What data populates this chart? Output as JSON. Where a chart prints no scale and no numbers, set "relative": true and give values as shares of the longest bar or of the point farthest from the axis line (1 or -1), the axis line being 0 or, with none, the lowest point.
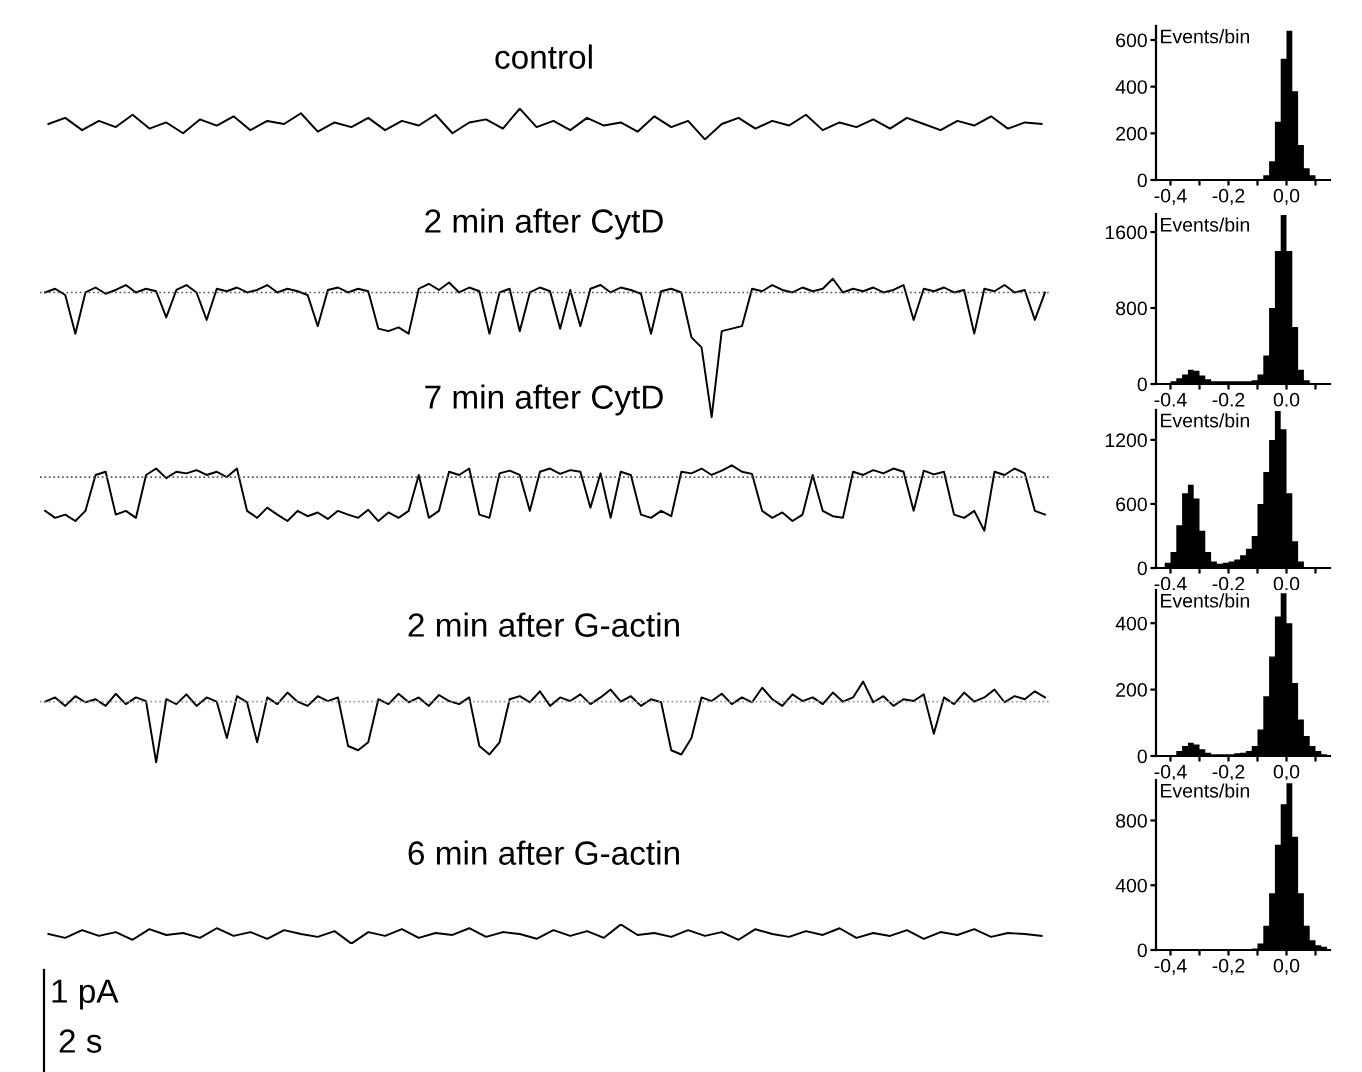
{
  "chart_data": [
    {
      "type": "line",
      "title": "control",
      "relative": true,
      "color": "#000000",
      "categories": [
        null,
        null,
        null,
        null,
        null,
        null,
        null,
        null,
        null,
        null,
        null,
        null,
        null,
        null,
        null,
        null,
        null,
        null,
        null,
        null,
        null,
        null,
        null,
        null,
        null,
        null,
        null,
        null,
        null,
        null,
        null,
        null,
        null,
        null,
        null,
        null,
        null,
        null,
        null,
        null,
        null,
        null,
        null,
        null,
        null,
        null,
        null,
        null,
        null,
        null,
        null,
        null,
        null,
        null,
        null,
        null,
        null,
        null,
        null,
        null
      ],
      "values": [
        0.5,
        0.7,
        0.3,
        0.6,
        0.4,
        0.8,
        0.35,
        0.55,
        0.2,
        0.65,
        0.45,
        0.75,
        0.3,
        0.6,
        0.5,
        0.85,
        0.25,
        0.55,
        0.4,
        0.7,
        0.3,
        0.6,
        0.45,
        0.8,
        0.2,
        0.55,
        0.65,
        0.35,
        1,
        0.4,
        0.6,
        0.3,
        0.7,
        0.45,
        0.55,
        0.25,
        0.75,
        0.4,
        0.6,
        0.0,
        0.5,
        0.7,
        0.35,
        0.6,
        0.45,
        0.8,
        0.3,
        0.55,
        0.4,
        0.65,
        0.35,
        0.7,
        0.5,
        0.3,
        0.6,
        0.45,
        0.75,
        0.35,
        0.55,
        0.5
      ]
    },
    {
      "type": "histogram",
      "annotations": [
        "Events/bin"
      ],
      "bins": [
        -0.44,
        -0.42,
        -0.4,
        -0.38,
        -0.36,
        -0.34,
        -0.32,
        -0.3,
        -0.28,
        -0.26,
        -0.24,
        -0.22,
        -0.2,
        -0.18,
        -0.16,
        -0.14,
        -0.12,
        -0.1,
        -0.08,
        -0.06,
        -0.04,
        -0.02,
        0.0,
        0.02,
        0.04,
        0.06,
        0.08,
        0.1,
        0.12,
        0.14
      ],
      "values": [
        0,
        0,
        0,
        0,
        0,
        0,
        0,
        0,
        0,
        0,
        0,
        0,
        0,
        0,
        0,
        0,
        0,
        0,
        20,
        80,
        250,
        520,
        640,
        380,
        150,
        50,
        20,
        0,
        0
      ],
      "color": "#000000",
      "xlim": [
        -0.45,
        0.15
      ],
      "ylim": [
        0,
        660
      ],
      "yticks": [
        0,
        200,
        400,
        600
      ],
      "xticks": [
        {
          "value": -0.4,
          "label": "-0,4"
        },
        {
          "value": -0.3,
          "label": null
        },
        {
          "value": -0.2,
          "label": "-0,2"
        },
        {
          "value": -0.1,
          "label": null
        },
        {
          "value": 0.0,
          "label": "0,0"
        },
        {
          "value": 0.1,
          "label": null
        }
      ]
    },
    {
      "type": "line",
      "title": "2 min after CytD",
      "relative": true,
      "color": "#000000",
      "categories": [
        null,
        null,
        null,
        null,
        null,
        null,
        null,
        null,
        null,
        null,
        null,
        null,
        null,
        null,
        null,
        null,
        null,
        null,
        null,
        null,
        null,
        null,
        null,
        null,
        null,
        null,
        null,
        null,
        null,
        null,
        null,
        null,
        null,
        null,
        null,
        null,
        null,
        null,
        null,
        null,
        null,
        null,
        null,
        null,
        null,
        null,
        null,
        null,
        null,
        null,
        null,
        null,
        null,
        null,
        null,
        null,
        null,
        null,
        null,
        null,
        null,
        null,
        null,
        null,
        null,
        null,
        null,
        null,
        null,
        null,
        null,
        null,
        null,
        null,
        null,
        null,
        null,
        null,
        null,
        null,
        null,
        null,
        null,
        null,
        null,
        null,
        null,
        null,
        null,
        null,
        null,
        null,
        null,
        null,
        null,
        null,
        null,
        null,
        null,
        null
      ],
      "values": [
        0,
        0.03,
        -0.02,
        -0.33,
        0,
        0.04,
        -0.01,
        0.02,
        0.06,
        0,
        0.03,
        0.01,
        -0.2,
        0.02,
        0.06,
        0,
        -0.22,
        0.03,
        0.01,
        0.04,
        0,
        0.02,
        0.06,
        0,
        0.03,
        0.01,
        -0.02,
        -0.27,
        0.02,
        0.04,
        0,
        0.03,
        0.01,
        -0.29,
        -0.31,
        -0.28,
        -0.33,
        0.03,
        0.07,
        0.02,
        0.08,
        0,
        0.04,
        0.01,
        -0.33,
        0,
        0.03,
        -0.31,
        0,
        0.04,
        0.01,
        -0.29,
        0.02,
        -0.27,
        0.03,
        0.06,
        0,
        0.04,
        0.02,
        -0.01,
        -0.33,
        0.01,
        0.03,
        0,
        -0.36,
        -0.44,
        -1,
        -0.31,
        -0.29,
        -0.27,
        0.03,
        0.01,
        0.06,
        0.02,
        0,
        0.04,
        0.01,
        0.03,
        0.11,
        0,
        0.03,
        0.01,
        0.04,
        0,
        0.02,
        0.06,
        -0.22,
        0.03,
        0.01,
        0.04,
        0,
        0.02,
        -0.33,
        0.03,
        0.01,
        0.06,
        0,
        0.02,
        -0.22,
        0
      ],
      "ref_lines": [
        {
          "axis": "y",
          "value": 0,
          "line_style": "dotted",
          "color": "#555555"
        }
      ]
    },
    {
      "type": "histogram",
      "annotations": [
        "Events/bin"
      ],
      "bins": [
        -0.44,
        -0.42,
        -0.4,
        -0.38,
        -0.36,
        -0.34,
        -0.32,
        -0.3,
        -0.28,
        -0.26,
        -0.24,
        -0.22,
        -0.2,
        -0.18,
        -0.16,
        -0.14,
        -0.12,
        -0.1,
        -0.08,
        -0.06,
        -0.04,
        -0.02,
        0.0,
        0.02,
        0.04,
        0.06,
        0.08,
        0.1,
        0.12,
        0.14
      ],
      "values": [
        0,
        10,
        30,
        60,
        100,
        150,
        140,
        90,
        50,
        30,
        30,
        30,
        30,
        30,
        30,
        30,
        40,
        100,
        300,
        800,
        1400,
        1780,
        1400,
        600,
        150,
        40,
        10,
        0,
        0
      ],
      "color": "#000000",
      "xlim": [
        -0.45,
        0.15
      ],
      "ylim": [
        0,
        1790
      ],
      "yticks": [
        0,
        800,
        1600
      ],
      "xticks": [
        {
          "value": -0.4,
          "label": "-0.4"
        },
        {
          "value": -0.3,
          "label": null
        },
        {
          "value": -0.2,
          "label": "-0.2"
        },
        {
          "value": -0.1,
          "label": null
        },
        {
          "value": 0.0,
          "label": "0.0"
        },
        {
          "value": 0.1,
          "label": null
        }
      ]
    },
    {
      "type": "line",
      "title": "7 min after CytD",
      "relative": true,
      "color": "#000000",
      "categories": [
        null,
        null,
        null,
        null,
        null,
        null,
        null,
        null,
        null,
        null,
        null,
        null,
        null,
        null,
        null,
        null,
        null,
        null,
        null,
        null,
        null,
        null,
        null,
        null,
        null,
        null,
        null,
        null,
        null,
        null,
        null,
        null,
        null,
        null,
        null,
        null,
        null,
        null,
        null,
        null,
        null,
        null,
        null,
        null,
        null,
        null,
        null,
        null,
        null,
        null,
        null,
        null,
        null,
        null,
        null,
        null,
        null,
        null,
        null,
        null,
        null,
        null,
        null,
        null,
        null,
        null,
        null,
        null,
        null,
        null,
        null,
        null,
        null,
        null,
        null,
        null,
        null,
        null,
        null,
        null,
        null,
        null,
        null,
        null,
        null,
        null,
        null,
        null,
        null,
        null,
        null,
        null,
        null,
        null,
        null,
        null,
        null,
        null,
        null,
        null
      ],
      "values": [
        -0.63,
        -0.76,
        -0.7,
        -0.82,
        -0.63,
        0.04,
        0.1,
        -0.7,
        -0.63,
        -0.76,
        0.04,
        0.16,
        -0.02,
        0.1,
        0.07,
        0.13,
        0.04,
        0.1,
        0,
        0.16,
        -0.63,
        -0.76,
        -0.57,
        -0.7,
        -0.82,
        -0.63,
        -0.73,
        -0.66,
        -0.78,
        -0.63,
        -0.7,
        -0.76,
        -0.61,
        -0.82,
        -0.66,
        -0.76,
        -0.63,
        0.04,
        -0.76,
        -0.63,
        0.1,
        0.04,
        0.16,
        -0.7,
        -0.76,
        0.07,
        0.12,
        0.04,
        -0.63,
        0.1,
        0.16,
        0.06,
        0.13,
        0.1,
        -0.57,
        0.07,
        -0.76,
        0.1,
        0.04,
        -0.7,
        -0.76,
        -0.63,
        -0.73,
        0.1,
        0.07,
        0.16,
        0.04,
        0.12,
        0.22,
        0.1,
        0.06,
        -0.63,
        -0.76,
        -0.66,
        -0.82,
        -0.7,
        0.04,
        -0.63,
        -0.73,
        -0.76,
        0.1,
        0.04,
        0.13,
        0.07,
        0.16,
        0.1,
        -0.63,
        0.12,
        0.05,
        0.1,
        -0.7,
        -0.76,
        -0.63,
        -1,
        0.1,
        0.04,
        0.16,
        0.07,
        -0.63,
        -0.7
      ],
      "ref_lines": [
        {
          "axis": "y",
          "value": 0,
          "line_style": "dotted",
          "color": "#555555"
        }
      ]
    },
    {
      "type": "histogram",
      "annotations": [
        "Events/bin"
      ],
      "bins": [
        -0.44,
        -0.42,
        -0.4,
        -0.38,
        -0.36,
        -0.34,
        -0.32,
        -0.3,
        -0.28,
        -0.26,
        -0.24,
        -0.22,
        -0.2,
        -0.18,
        -0.16,
        -0.14,
        -0.12,
        -0.1,
        -0.08,
        -0.06,
        -0.04,
        -0.02,
        0.0,
        0.02,
        0.04,
        0.06,
        0.08,
        0.1,
        0.12,
        0.14
      ],
      "values": [
        10,
        50,
        150,
        400,
        700,
        780,
        650,
        350,
        150,
        60,
        40,
        50,
        60,
        80,
        120,
        180,
        300,
        600,
        900,
        1200,
        1470,
        1300,
        700,
        250,
        60,
        10,
        0,
        0,
        0
      ],
      "color": "#000000",
      "xlim": [
        -0.45,
        0.15
      ],
      "ylim": [
        0,
        1480
      ],
      "yticks": [
        0,
        600,
        1200
      ],
      "xticks": [
        {
          "value": -0.4,
          "label": "-0,4"
        },
        {
          "value": -0.3,
          "label": null
        },
        {
          "value": -0.2,
          "label": "-0,2"
        },
        {
          "value": -0.1,
          "label": null
        },
        {
          "value": 0.0,
          "label": "0,0"
        },
        {
          "value": 0.1,
          "label": null
        }
      ]
    },
    {
      "type": "line",
      "title": "2 min after G-actin",
      "relative": true,
      "color": "#000000",
      "categories": [
        null,
        null,
        null,
        null,
        null,
        null,
        null,
        null,
        null,
        null,
        null,
        null,
        null,
        null,
        null,
        null,
        null,
        null,
        null,
        null,
        null,
        null,
        null,
        null,
        null,
        null,
        null,
        null,
        null,
        null,
        null,
        null,
        null,
        null,
        null,
        null,
        null,
        null,
        null,
        null,
        null,
        null,
        null,
        null,
        null,
        null,
        null,
        null,
        null,
        null,
        null,
        null,
        null,
        null,
        null,
        null,
        null,
        null,
        null,
        null,
        null,
        null,
        null,
        null,
        null,
        null,
        null,
        null,
        null,
        null,
        null,
        null,
        null,
        null,
        null,
        null,
        null,
        null,
        null,
        null,
        null,
        null,
        null,
        null,
        null,
        null,
        null,
        null,
        null,
        null,
        null,
        null,
        null,
        null,
        null,
        null,
        null,
        null,
        null,
        null
      ],
      "values": [
        0,
        0.07,
        -0.07,
        0.09,
        -0.01,
        0.04,
        -0.07,
        0.13,
        -0.04,
        0.07,
        0.01,
        -1,
        0.04,
        -0.04,
        0.12,
        -0.07,
        0.07,
        0,
        -0.6,
        0.09,
        -0.01,
        -0.67,
        0.07,
        -0.04,
        0.15,
        0,
        -0.07,
        0.09,
        0.01,
        0.07,
        -0.73,
        -0.8,
        -0.67,
        0.04,
        -0.04,
        0.13,
        -0.01,
        0.07,
        -0.07,
        0.11,
        0.01,
        -0.04,
        0.07,
        -0.73,
        -0.87,
        -0.67,
        0.04,
        0.09,
        -0.01,
        0.17,
        -0.07,
        0.07,
        0.01,
        0.12,
        -0.04,
        0.07,
        0.2,
        0,
        0.09,
        -0.07,
        0.04,
        -0.01,
        -0.8,
        -0.87,
        -0.6,
        0.07,
        0.01,
        0.13,
        -0.04,
        0.07,
        -0.01,
        0.23,
        0.04,
        -0.07,
        0.12,
        0.01,
        0.07,
        -0.04,
        0.15,
        0,
        0.07,
        0.33,
        -0.01,
        0.09,
        -0.07,
        0.04,
        0.01,
        0.12,
        -0.53,
        0.07,
        -0.04,
        0.15,
        0,
        0.07,
        0.2,
        -0.01,
        0.09,
        0.04,
        0.17,
        0.07
      ],
      "ref_lines": [
        {
          "axis": "y",
          "value": 0,
          "line_style": "dotted",
          "color": "#999999"
        }
      ]
    },
    {
      "type": "histogram",
      "annotations": [
        "Events/bin"
      ],
      "bins": [
        -0.44,
        -0.42,
        -0.4,
        -0.38,
        -0.36,
        -0.34,
        -0.32,
        -0.3,
        -0.28,
        -0.26,
        -0.24,
        -0.22,
        -0.2,
        -0.18,
        -0.16,
        -0.14,
        -0.12,
        -0.1,
        -0.08,
        -0.06,
        -0.04,
        -0.02,
        0.0,
        0.02,
        0.04,
        0.06,
        0.08,
        0.1,
        0.12,
        0.14
      ],
      "values": [
        0,
        0,
        0,
        15,
        30,
        40,
        35,
        20,
        10,
        5,
        5,
        5,
        5,
        8,
        10,
        15,
        30,
        80,
        180,
        300,
        420,
        490,
        400,
        220,
        110,
        60,
        30,
        15,
        5
      ],
      "color": "#000000",
      "xlim": [
        -0.45,
        0.15
      ],
      "ylim": [
        0,
        500
      ],
      "yticks": [
        0,
        200,
        400
      ],
      "xticks": [
        {
          "value": -0.4,
          "label": "-0,4"
        },
        {
          "value": -0.3,
          "label": null
        },
        {
          "value": -0.2,
          "label": "-0,2"
        },
        {
          "value": -0.1,
          "label": null
        },
        {
          "value": 0.0,
          "label": "0,0"
        },
        {
          "value": 0.1,
          "label": null
        }
      ]
    },
    {
      "type": "line",
      "title": "6 min after G-actin",
      "relative": true,
      "color": "#000000",
      "categories": [
        null,
        null,
        null,
        null,
        null,
        null,
        null,
        null,
        null,
        null,
        null,
        null,
        null,
        null,
        null,
        null,
        null,
        null,
        null,
        null,
        null,
        null,
        null,
        null,
        null,
        null,
        null,
        null,
        null,
        null,
        null,
        null,
        null,
        null,
        null,
        null,
        null,
        null,
        null,
        null,
        null,
        null,
        null,
        null,
        null,
        null,
        null,
        null,
        null,
        null,
        null,
        null,
        null,
        null,
        null,
        null,
        null,
        null,
        null,
        null
      ],
      "values": [
        0.5,
        0.3,
        0.7,
        0.4,
        0.6,
        0.2,
        0.75,
        0.45,
        0.55,
        0.3,
        0.8,
        0.4,
        0.6,
        0.25,
        0.7,
        0.5,
        0.35,
        0.65,
        0.0,
        0.6,
        0.4,
        0.75,
        0.3,
        0.55,
        0.45,
        0.8,
        0.35,
        0.6,
        0.5,
        0.25,
        0.7,
        0.4,
        0.65,
        0.3,
        1,
        0.45,
        0.55,
        0.35,
        0.7,
        0.4,
        0.6,
        0.2,
        0.75,
        0.5,
        0.35,
        0.65,
        0.45,
        0.8,
        0.3,
        0.55,
        0.4,
        0.7,
        0.25,
        0.6,
        0.45,
        0.75,
        0.35,
        0.55,
        0.5,
        0.4
      ],
      "annotations": [
        "1 pA",
        "2 s"
      ]
    },
    {
      "type": "histogram",
      "annotations": [
        "Events/bin"
      ],
      "bins": [
        -0.44,
        -0.42,
        -0.4,
        -0.38,
        -0.36,
        -0.34,
        -0.32,
        -0.3,
        -0.28,
        -0.26,
        -0.24,
        -0.22,
        -0.2,
        -0.18,
        -0.16,
        -0.14,
        -0.12,
        -0.1,
        -0.08,
        -0.06,
        -0.04,
        -0.02,
        0.0,
        0.02,
        0.04,
        0.06,
        0.08,
        0.1,
        0.12,
        0.14
      ],
      "values": [
        0,
        0,
        0,
        0,
        0,
        0,
        0,
        0,
        0,
        0,
        0,
        0,
        0,
        0,
        0,
        0,
        10,
        40,
        150,
        350,
        650,
        900,
        1030,
        700,
        350,
        150,
        60,
        30,
        20
      ],
      "color": "#000000",
      "xlim": [
        -0.45,
        0.15
      ],
      "ylim": [
        0,
        1050
      ],
      "yticks": [
        0,
        400,
        800
      ],
      "xticks": [
        {
          "value": -0.4,
          "label": "-0,4"
        },
        {
          "value": -0.3,
          "label": null
        },
        {
          "value": -0.2,
          "label": "-0,2"
        },
        {
          "value": -0.1,
          "label": null
        },
        {
          "value": 0.0,
          "label": "0,0"
        },
        {
          "value": 0.1,
          "label": null
        }
      ]
    }
  ]
}
